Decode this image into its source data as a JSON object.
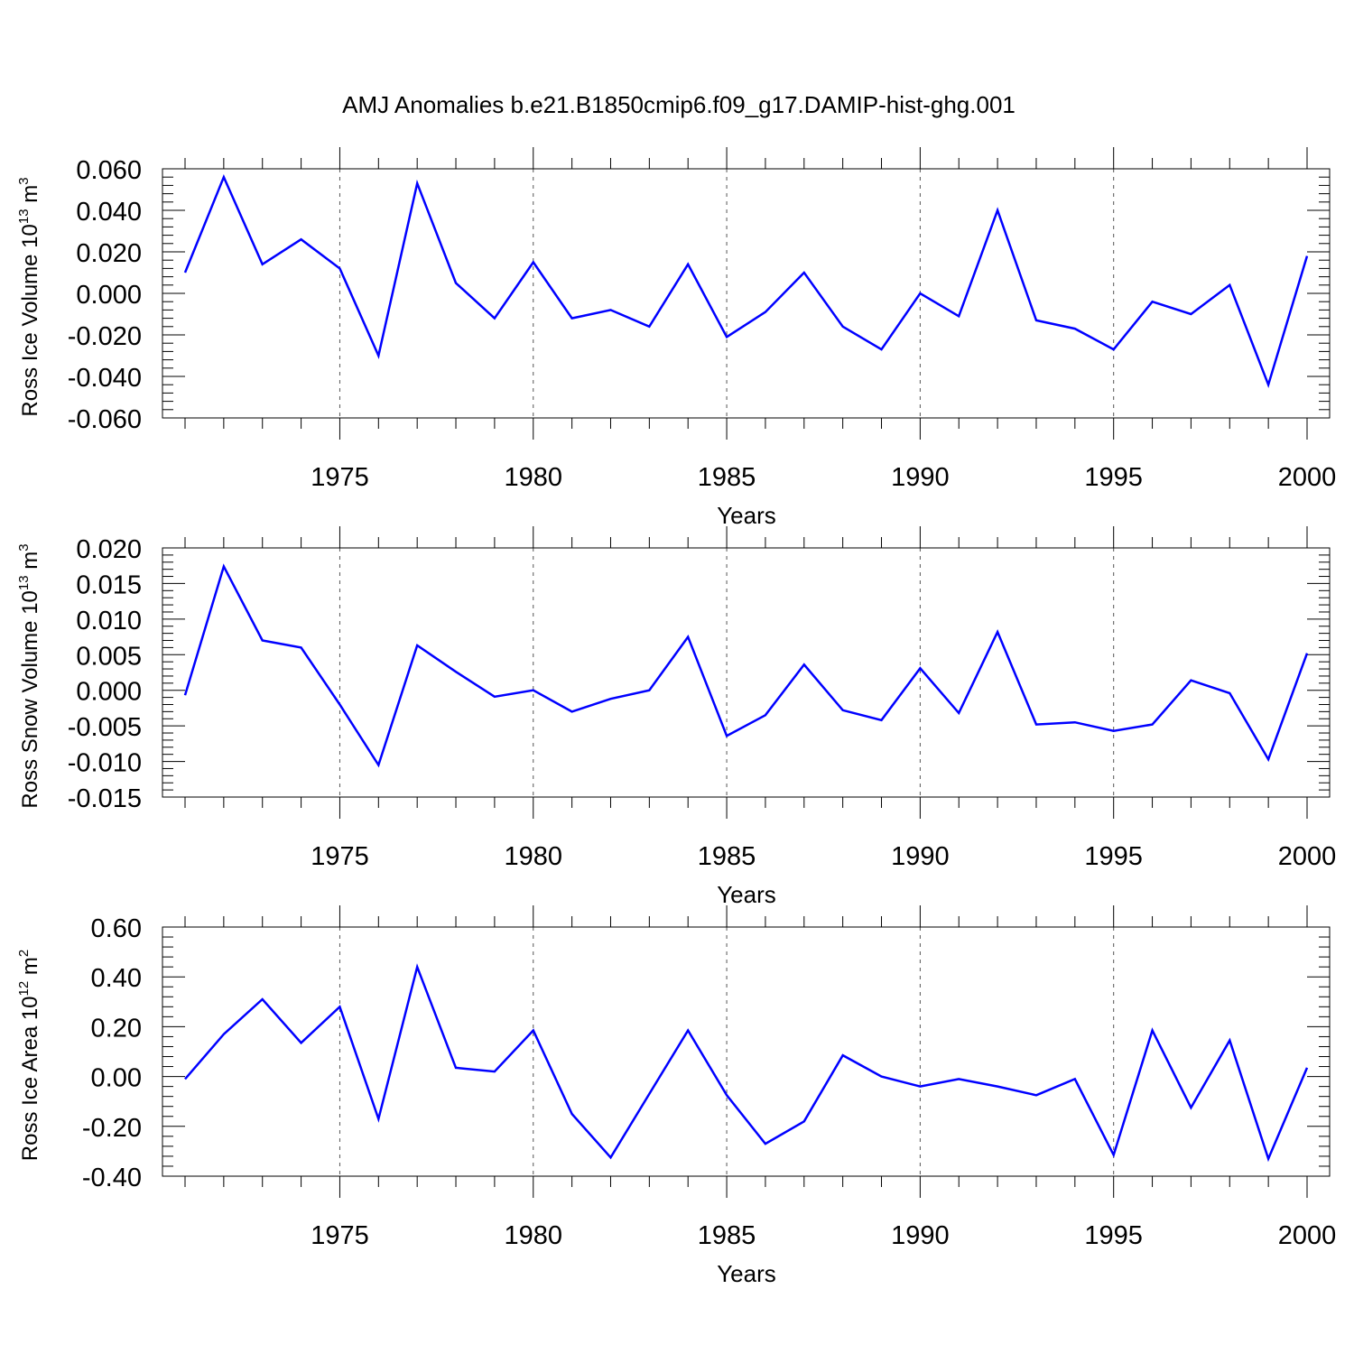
{
  "title": "AMJ Anomalies b.e21.B1850cmip6.f09_g17.DAMIP-hist-ghg.001",
  "chart_data": [
    {
      "type": "line",
      "ylabel": {
        "main": "Ross Ice Volume 10",
        "sup": "13",
        "mid": " m",
        "sup2": "3"
      },
      "xlabel": "Years",
      "xlim": [
        1971,
        2000
      ],
      "ylim": [
        -0.06,
        0.06
      ],
      "yticks": [
        "-0.060",
        "-0.040",
        "-0.020",
        "0.000",
        "0.020",
        "0.040",
        "0.060"
      ],
      "ytick_values": [
        -0.06,
        -0.04,
        -0.02,
        0.0,
        0.02,
        0.04,
        0.06
      ],
      "xticks": [
        "1975",
        "1980",
        "1985",
        "1990",
        "1995",
        "2000"
      ],
      "xtick_values": [
        1975,
        1980,
        1985,
        1990,
        1995,
        2000
      ],
      "grid": "vertical dashed at major ticks",
      "series": [
        {
          "name": "Ross Ice Volume",
          "color": "#0000ff",
          "x": [
            1971,
            1972,
            1973,
            1974,
            1975,
            1976,
            1977,
            1978,
            1979,
            1980,
            1981,
            1982,
            1983,
            1984,
            1985,
            1986,
            1987,
            1988,
            1989,
            1990,
            1991,
            1992,
            1993,
            1994,
            1995,
            1996,
            1997,
            1998,
            1999,
            2000
          ],
          "values": [
            0.01,
            0.056,
            0.014,
            0.026,
            0.012,
            -0.03,
            0.053,
            0.005,
            -0.012,
            0.015,
            -0.012,
            -0.008,
            -0.016,
            0.014,
            -0.021,
            -0.009,
            0.01,
            -0.016,
            -0.027,
            0.0,
            -0.011,
            0.04,
            -0.013,
            -0.017,
            -0.027,
            -0.004,
            -0.01,
            0.004,
            -0.044,
            0.018
          ]
        }
      ]
    },
    {
      "type": "line",
      "ylabel": {
        "main": "Ross Snow Volume 10",
        "sup": "13",
        "mid": " m",
        "sup2": "3"
      },
      "xlabel": "Years",
      "xlim": [
        1971,
        2000
      ],
      "ylim": [
        -0.015,
        0.02
      ],
      "yticks": [
        "-0.015",
        "-0.010",
        "-0.005",
        "0.000",
        "0.005",
        "0.010",
        "0.015",
        "0.020"
      ],
      "ytick_values": [
        -0.015,
        -0.01,
        -0.005,
        0.0,
        0.005,
        0.01,
        0.015,
        0.02
      ],
      "xticks": [
        "1975",
        "1980",
        "1985",
        "1990",
        "1995",
        "2000"
      ],
      "xtick_values": [
        1975,
        1980,
        1985,
        1990,
        1995,
        2000
      ],
      "grid": "vertical dashed at major ticks",
      "series": [
        {
          "name": "Ross Snow Volume",
          "color": "#0000ff",
          "x": [
            1971,
            1972,
            1973,
            1974,
            1975,
            1976,
            1977,
            1978,
            1979,
            1980,
            1981,
            1982,
            1983,
            1984,
            1985,
            1986,
            1987,
            1988,
            1989,
            1990,
            1991,
            1992,
            1993,
            1994,
            1995,
            1996,
            1997,
            1998,
            1999,
            2000
          ],
          "values": [
            -0.0007,
            0.0174,
            0.007,
            0.006,
            -0.002,
            -0.0105,
            0.0063,
            0.0026,
            -0.0009,
            0.0,
            -0.003,
            -0.0012,
            0.0,
            0.0075,
            -0.0064,
            -0.0035,
            0.0036,
            -0.0028,
            -0.0042,
            0.0031,
            -0.0032,
            0.0082,
            -0.0048,
            -0.0045,
            -0.0057,
            -0.0048,
            0.0014,
            -0.0004,
            -0.0097,
            0.0052
          ]
        }
      ]
    },
    {
      "type": "line",
      "ylabel": {
        "main": "Ross Ice Area 10",
        "sup": "12",
        "mid": " m",
        "sup2": "2"
      },
      "xlabel": "Years",
      "xlim": [
        1971,
        2000
      ],
      "ylim": [
        -0.4,
        0.6
      ],
      "yticks": [
        "-0.40",
        "-0.20",
        "0.00",
        "0.20",
        "0.40",
        "0.60"
      ],
      "ytick_values": [
        -0.4,
        -0.2,
        0.0,
        0.2,
        0.4,
        0.6
      ],
      "xticks": [
        "1975",
        "1980",
        "1985",
        "1990",
        "1995",
        "2000"
      ],
      "xtick_values": [
        1975,
        1980,
        1985,
        1990,
        1995,
        2000
      ],
      "grid": "vertical dashed at major ticks",
      "series": [
        {
          "name": "Ross Ice Area",
          "color": "#0000ff",
          "x": [
            1971,
            1972,
            1973,
            1974,
            1975,
            1976,
            1977,
            1978,
            1979,
            1980,
            1981,
            1982,
            1983,
            1984,
            1985,
            1986,
            1987,
            1988,
            1989,
            1990,
            1991,
            1992,
            1993,
            1994,
            1995,
            1996,
            1997,
            1998,
            1999,
            2000
          ],
          "values": [
            -0.01,
            0.17,
            0.31,
            0.135,
            0.28,
            -0.17,
            0.44,
            0.035,
            0.02,
            0.185,
            -0.15,
            -0.325,
            -0.07,
            0.185,
            -0.075,
            -0.27,
            -0.18,
            0.085,
            0.0,
            -0.04,
            -0.01,
            -0.04,
            -0.075,
            -0.01,
            -0.315,
            0.185,
            -0.125,
            0.145,
            -0.33,
            0.035
          ]
        }
      ]
    }
  ]
}
